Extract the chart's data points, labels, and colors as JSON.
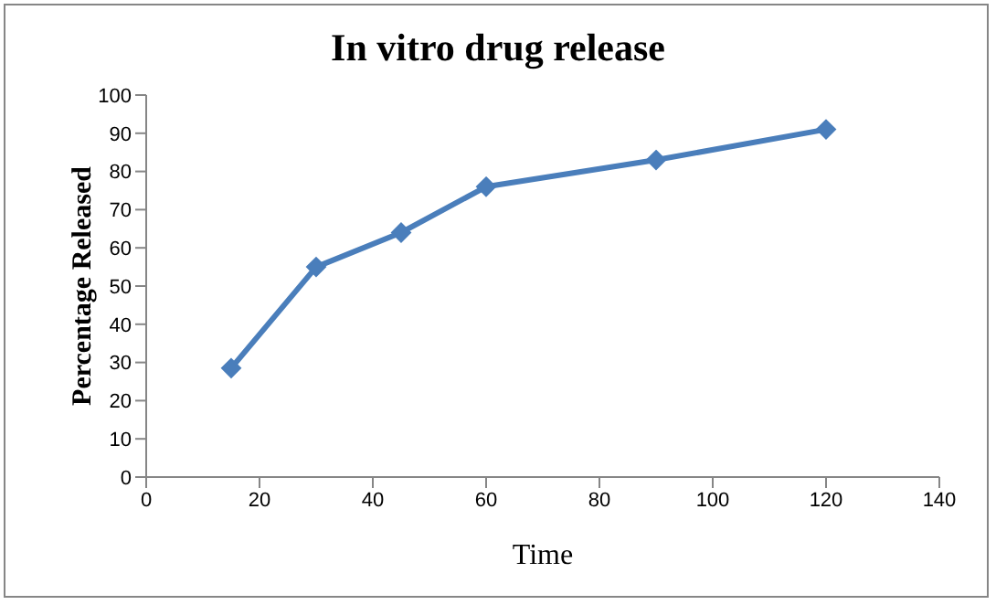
{
  "chart_data": {
    "type": "line",
    "title": "In vitro drug release",
    "xlabel": "Time",
    "ylabel": "Percentage Released",
    "x": [
      15,
      30,
      45,
      60,
      90,
      120
    ],
    "series": [
      {
        "color": "#4a7ebb",
        "values": [
          28.5,
          55,
          64,
          76,
          83,
          91
        ]
      }
    ],
    "xlim": [
      0,
      140
    ],
    "xticks": [
      0,
      20,
      40,
      60,
      80,
      100,
      120,
      140
    ],
    "ylim": [
      0,
      100
    ],
    "yticks": [
      0,
      10,
      20,
      30,
      40,
      50,
      60,
      70,
      80,
      90,
      100
    ],
    "grid": false,
    "legend": false,
    "marker": "diamond",
    "line_style": "solid"
  }
}
